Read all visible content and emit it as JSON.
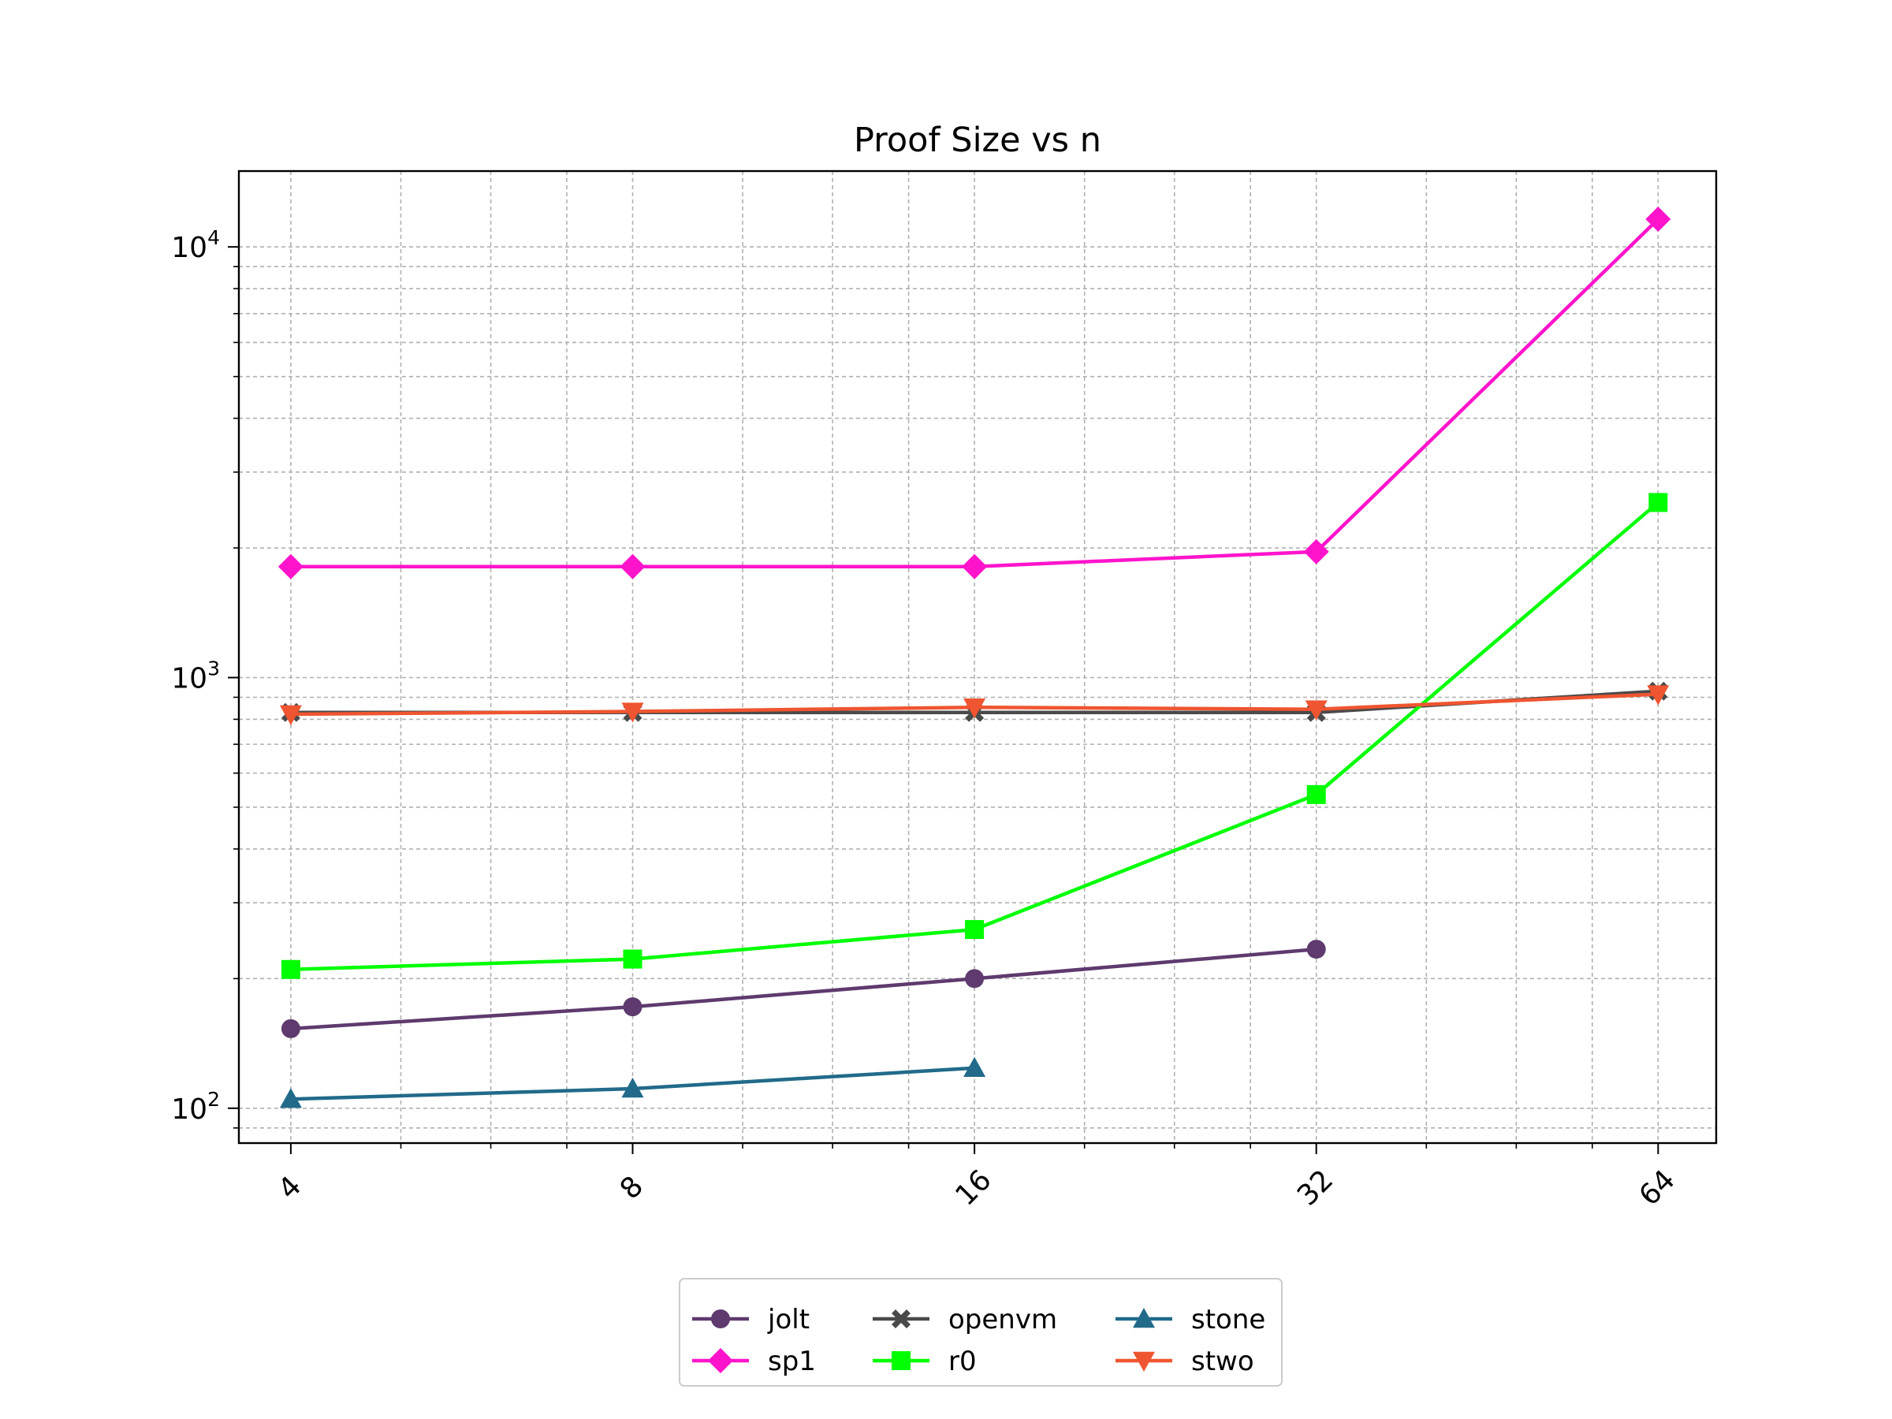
{
  "chart_data": {
    "type": "line",
    "title": "Proof Size vs n",
    "xlabel": "",
    "ylabel": "",
    "x_scale": "log2",
    "y_scale": "log",
    "xlim": [
      3.6,
      72
    ],
    "ylim": [
      83,
      15000
    ],
    "x_ticks": [
      4,
      8,
      16,
      32,
      64
    ],
    "x_tick_labels": [
      "4",
      "8",
      "16",
      "32",
      "64"
    ],
    "y_ticks": [
      {
        "value": 100,
        "base": "10",
        "exp": "2"
      },
      {
        "value": 1000,
        "base": "10",
        "exp": "3"
      },
      {
        "value": 10000,
        "base": "10",
        "exp": "4"
      }
    ],
    "grid": true,
    "legend_placement": "below",
    "series": [
      {
        "name": "jolt",
        "color": "#5e3a6e",
        "marker": "circle",
        "x": [
          4,
          8,
          16,
          32
        ],
        "values": [
          153,
          172,
          200,
          234
        ]
      },
      {
        "name": "sp1",
        "color": "#ff14cc",
        "marker": "diamond",
        "x": [
          4,
          8,
          16,
          32,
          64
        ],
        "values": [
          1810,
          1810,
          1810,
          1960,
          11600
        ]
      },
      {
        "name": "openvm",
        "color": "#4a4a4a",
        "marker": "x",
        "x": [
          4,
          8,
          16,
          32,
          64
        ],
        "values": [
          830,
          830,
          830,
          830,
          930
        ]
      },
      {
        "name": "r0",
        "color": "#00ff00",
        "marker": "square",
        "x": [
          4,
          8,
          16,
          32,
          64
        ],
        "values": [
          210,
          222,
          260,
          535,
          2550
        ]
      },
      {
        "name": "stone",
        "color": "#216a8a",
        "marker": "triangle-up",
        "x": [
          4,
          8,
          16
        ],
        "values": [
          105,
          111,
          124
        ]
      },
      {
        "name": "stwo",
        "color": "#ef5530",
        "marker": "triangle-down",
        "x": [
          4,
          8,
          16,
          32,
          64
        ],
        "values": [
          822,
          834,
          853,
          844,
          915
        ]
      }
    ]
  }
}
